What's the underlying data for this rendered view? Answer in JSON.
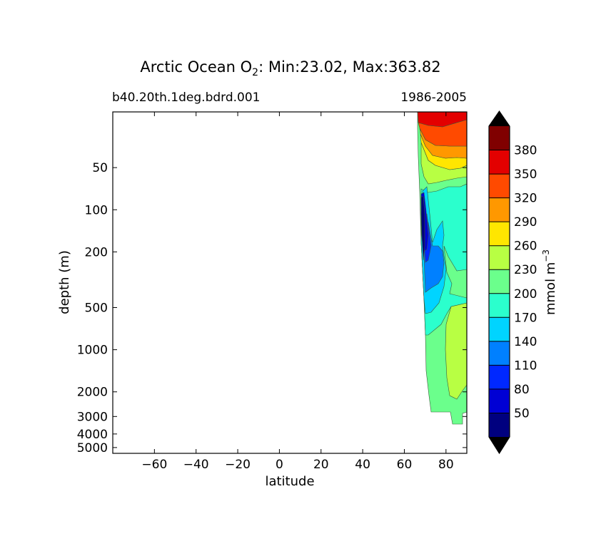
{
  "title": {
    "prefix": "Arctic Ocean O",
    "subscript": "2",
    "suffix": ": Min:23.02, Max:363.82"
  },
  "subtitle_left": "b40.20th.1deg.bdrd.001",
  "subtitle_right": "1986-2005",
  "colorbar": {
    "label_main": "mmol m",
    "label_sup": "−3",
    "levels": [
      20,
      50,
      80,
      110,
      140,
      170,
      200,
      230,
      260,
      290,
      320,
      350,
      380,
      410
    ],
    "tick_labels": [
      "50",
      "80",
      "110",
      "140",
      "170",
      "200",
      "230",
      "260",
      "290",
      "320",
      "350",
      "380"
    ],
    "colors": [
      "#00007f",
      "#0000d4",
      "#0028ff",
      "#0080ff",
      "#00d4ff",
      "#2bffcd",
      "#6bff8c",
      "#b8ff43",
      "#ffe600",
      "#ff9800",
      "#ff4a00",
      "#e30000",
      "#800000"
    ],
    "extend": "both"
  },
  "chart_data": {
    "type": "contourf",
    "title": "Arctic Ocean O2: Min:23.02, Max:363.82",
    "xlabel": "latitude",
    "ylabel": "depth (m)",
    "xlim": [
      -80,
      90
    ],
    "ylim": [
      5500,
      20
    ],
    "y_scale": "log",
    "x_ticks": [
      -60,
      -40,
      -20,
      0,
      20,
      40,
      60,
      80
    ],
    "x_tick_labels": [
      "−60",
      "−40",
      "−20",
      "0",
      "20",
      "40",
      "60",
      "80"
    ],
    "y_ticks": [
      50,
      100,
      200,
      500,
      1000,
      2000,
      3000,
      4000,
      5000
    ],
    "y_tick_labels": [
      "50",
      "100",
      "200",
      "500",
      "1000",
      "2000",
      "3000",
      "4000",
      "5000"
    ],
    "data_extent_lat": [
      66,
      90
    ],
    "contour_bands": [
      {
        "range": [
          320,
          410
        ],
        "lat": [
          66,
          90
        ],
        "depth": [
          20,
          50
        ]
      },
      {
        "range": [
          290,
          320
        ],
        "lat": [
          67,
          90
        ],
        "depth": [
          50,
          75
        ]
      },
      {
        "range": [
          260,
          290
        ],
        "lat": [
          68,
          90
        ],
        "depth": [
          70,
          100
        ]
      },
      {
        "range": [
          230,
          260
        ],
        "lat": [
          69,
          90
        ],
        "depth": [
          100,
          150
        ]
      },
      {
        "range": [
          200,
          230
        ],
        "lat": [
          69,
          90
        ],
        "depth": [
          130,
          1000
        ]
      },
      {
        "range": [
          170,
          200
        ],
        "lat": [
          70,
          90
        ],
        "depth": [
          150,
          500
        ]
      },
      {
        "range": [
          140,
          170
        ],
        "lat": [
          70,
          80
        ],
        "depth": [
          250,
          650
        ]
      },
      {
        "range": [
          110,
          140
        ],
        "lat": [
          70,
          76
        ],
        "depth": [
          290,
          470
        ]
      },
      {
        "range": [
          20,
          110
        ],
        "lat": [
          68,
          71
        ],
        "depth": [
          160,
          330
        ]
      },
      {
        "range": [
          200,
          230
        ],
        "lat": [
          70,
          90
        ],
        "depth": [
          650,
          4100
        ]
      },
      {
        "range": [
          230,
          260
        ],
        "lat": [
          80,
          90
        ],
        "depth": [
          800,
          3000
        ]
      }
    ]
  }
}
